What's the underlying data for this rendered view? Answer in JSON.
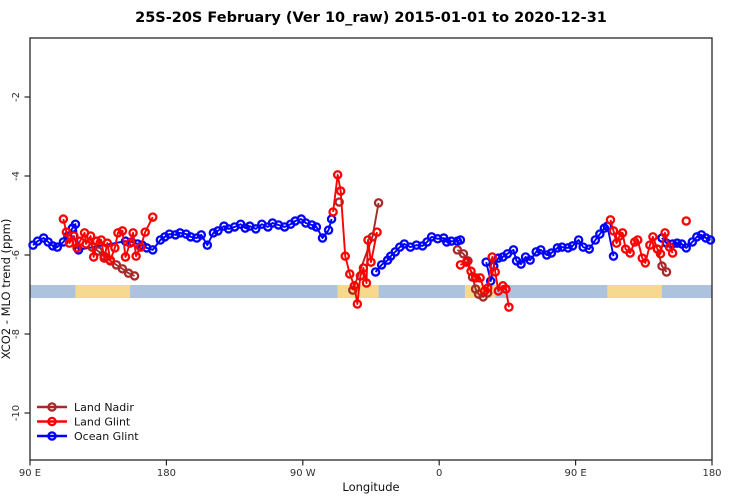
{
  "title": "25S-20S February (Ver 10_raw)   2015-01-01 to 2020-12-31",
  "chart_data": {
    "type": "line",
    "title": "25S-20S February (Ver 10_raw)   2015-01-01 to 2020-12-31",
    "xlabel": "Longitude",
    "ylabel": "XCO2 - MLO trend (ppm)",
    "x_axis": {
      "range_axis_deg": [
        90,
        540
      ],
      "ticks_axis_deg": [
        90,
        180,
        270,
        360,
        450,
        540
      ],
      "tick_labels": [
        "90 E",
        "180",
        "90 W",
        "0",
        "90 E",
        "180"
      ],
      "note": "longitude axis wraps eastward: 90E to 180 to 90W to 0 to 90E to 180"
    },
    "y_axis": {
      "range": [
        -11.2,
        -0.5
      ],
      "ticks": [
        -2,
        -4,
        -6,
        -8,
        -10
      ],
      "tick_labels": [
        "-2",
        "-4",
        "-6",
        "-8",
        "-10"
      ]
    },
    "grid": false,
    "legend": {
      "position": "bottom-left",
      "entries": [
        "Land Nadir",
        "Land Glint",
        "Ocean Glint"
      ]
    },
    "land_ocean_band": {
      "description": "horizontal strip marking land (yellow) vs ocean (blue) along longitude",
      "y_range_ppm": [
        -6.76,
        -7.09
      ],
      "ocean_color": "#adc2dd",
      "land_color": "#f6d98c",
      "segments": [
        {
          "surface": "ocean",
          "from": 90,
          "to": 120
        },
        {
          "surface": "land",
          "from": 120,
          "to": 156
        },
        {
          "surface": "ocean",
          "from": 156,
          "to": 293
        },
        {
          "surface": "land",
          "from": 293,
          "to": 320
        },
        {
          "surface": "ocean",
          "from": 320,
          "to": 377
        },
        {
          "surface": "land",
          "from": 377,
          "to": 397
        },
        {
          "surface": "ocean",
          "from": 397,
          "to": 471
        },
        {
          "surface": "land",
          "from": 471,
          "to": 507
        },
        {
          "surface": "ocean",
          "from": 507,
          "to": 540
        }
      ]
    },
    "series": [
      {
        "name": "Ocean Glint",
        "color": "#0000ff",
        "marker": "open-circle",
        "segments": [
          [
            [
              92,
              -5.75
            ],
            [
              95,
              -5.65
            ],
            [
              99,
              -5.57
            ],
            [
              102,
              -5.67
            ],
            [
              105,
              -5.77
            ],
            [
              108,
              -5.8
            ],
            [
              112,
              -5.67
            ],
            [
              115,
              -5.52
            ],
            [
              118,
              -5.32
            ],
            [
              120,
              -5.22
            ],
            [
              122,
              -5.87
            ],
            [
              153,
              -5.65
            ],
            [
              157,
              -5.67
            ],
            [
              161,
              -5.72
            ],
            [
              164,
              -5.75
            ],
            [
              167,
              -5.82
            ],
            [
              171,
              -5.87
            ],
            [
              176,
              -5.62
            ],
            [
              179,
              -5.54
            ],
            [
              182,
              -5.47
            ],
            [
              186,
              -5.49
            ],
            [
              189,
              -5.44
            ],
            [
              193,
              -5.47
            ],
            [
              196,
              -5.54
            ],
            [
              200,
              -5.57
            ],
            [
              203,
              -5.49
            ],
            [
              207,
              -5.75
            ],
            [
              211,
              -5.44
            ],
            [
              214,
              -5.39
            ],
            [
              218,
              -5.27
            ],
            [
              221,
              -5.34
            ],
            [
              225,
              -5.29
            ],
            [
              229,
              -5.22
            ],
            [
              232,
              -5.32
            ],
            [
              235,
              -5.27
            ],
            [
              239,
              -5.34
            ],
            [
              243,
              -5.22
            ],
            [
              247,
              -5.29
            ],
            [
              250,
              -5.19
            ],
            [
              254,
              -5.24
            ],
            [
              258,
              -5.29
            ],
            [
              262,
              -5.22
            ],
            [
              265,
              -5.14
            ],
            [
              269,
              -5.09
            ],
            [
              272,
              -5.19
            ],
            [
              276,
              -5.24
            ],
            [
              279,
              -5.29
            ],
            [
              283,
              -5.57
            ],
            [
              287,
              -5.37
            ],
            [
              289,
              -5.09
            ]
          ],
          [
            [
              318,
              -6.43
            ],
            [
              322,
              -6.25
            ],
            [
              326,
              -6.13
            ],
            [
              328,
              -6.03
            ],
            [
              331,
              -5.92
            ],
            [
              334,
              -5.8
            ],
            [
              337,
              -5.72
            ],
            [
              341,
              -5.8
            ],
            [
              345,
              -5.75
            ],
            [
              349,
              -5.77
            ],
            [
              352,
              -5.67
            ],
            [
              355,
              -5.54
            ],
            [
              359,
              -5.59
            ],
            [
              363,
              -5.57
            ],
            [
              365,
              -5.67
            ],
            [
              368,
              -5.65
            ],
            [
              372,
              -5.65
            ],
            [
              374,
              -5.62
            ]
          ],
          [
            [
              391,
              -6.18
            ],
            [
              394,
              -6.66
            ],
            [
              396,
              -6.28
            ],
            [
              399,
              -6.08
            ],
            [
              402,
              -6.05
            ],
            [
              405,
              -5.97
            ],
            [
              409,
              -5.87
            ],
            [
              411,
              -6.15
            ],
            [
              414,
              -6.23
            ],
            [
              417,
              -6.05
            ],
            [
              420,
              -6.13
            ],
            [
              424,
              -5.92
            ],
            [
              427,
              -5.87
            ],
            [
              431,
              -6.0
            ],
            [
              434,
              -5.95
            ],
            [
              438,
              -5.82
            ],
            [
              441,
              -5.8
            ],
            [
              445,
              -5.82
            ],
            [
              448,
              -5.77
            ],
            [
              452,
              -5.62
            ],
            [
              455,
              -5.8
            ],
            [
              459,
              -5.85
            ],
            [
              463,
              -5.62
            ],
            [
              466,
              -5.47
            ],
            [
              469,
              -5.32
            ],
            [
              471,
              -5.27
            ],
            [
              475,
              -6.03
            ]
          ],
          [
            [
              507,
              -5.57
            ],
            [
              510,
              -5.7
            ],
            [
              514,
              -5.72
            ],
            [
              517,
              -5.7
            ],
            [
              520,
              -5.72
            ],
            [
              523,
              -5.82
            ],
            [
              527,
              -5.67
            ],
            [
              530,
              -5.54
            ],
            [
              533,
              -5.49
            ],
            [
              536,
              -5.57
            ],
            [
              539,
              -5.62
            ]
          ]
        ]
      },
      {
        "name": "Land Nadir",
        "color": "#a52a2a",
        "marker": "open-circle",
        "segments": [
          [
            [
              131,
              -5.8
            ],
            [
              135,
              -5.9
            ],
            [
              139,
              -6.03
            ],
            [
              143,
              -6.15
            ],
            [
              147,
              -6.25
            ],
            [
              151,
              -6.35
            ],
            [
              155,
              -6.46
            ],
            [
              159,
              -6.53
            ]
          ],
          [
            [
              294,
              -4.66
            ]
          ],
          [
            [
              303,
              -6.89
            ],
            [
              316,
              -5.54
            ],
            [
              320,
              -4.68
            ]
          ],
          [
            [
              372,
              -5.87
            ],
            [
              376,
              -5.97
            ],
            [
              379,
              -6.15
            ],
            [
              382,
              -6.56
            ],
            [
              384,
              -6.86
            ],
            [
              386,
              -6.99
            ],
            [
              389,
              -7.06
            ],
            [
              392,
              -6.96
            ]
          ],
          [
            [
              504,
              -5.85
            ],
            [
              507,
              -6.28
            ],
            [
              510,
              -6.43
            ]
          ]
        ]
      },
      {
        "name": "Land Glint",
        "color": "#ff0000",
        "marker": "open-circle",
        "segments": [
          [
            [
              112,
              -5.09
            ],
            [
              114,
              -5.42
            ],
            [
              116,
              -5.7
            ],
            [
              119,
              -5.52
            ],
            [
              121,
              -5.82
            ],
            [
              123,
              -5.65
            ],
            [
              126,
              -5.44
            ],
            [
              127,
              -5.72
            ],
            [
              130,
              -5.52
            ],
            [
              132,
              -6.05
            ],
            [
              134,
              -5.65
            ],
            [
              137,
              -5.62
            ],
            [
              139,
              -6.08
            ],
            [
              141,
              -5.7
            ],
            [
              143,
              -6.13
            ],
            [
              146,
              -5.82
            ],
            [
              148,
              -5.44
            ],
            [
              151,
              -5.39
            ],
            [
              153,
              -6.05
            ],
            [
              156,
              -5.7
            ],
            [
              158,
              -5.44
            ],
            [
              160,
              -6.03
            ],
            [
              163,
              -5.8
            ],
            [
              166,
              -5.42
            ],
            [
              171,
              -5.04
            ]
          ],
          [
            [
              290,
              -4.91
            ],
            [
              293,
              -3.97
            ],
            [
              295,
              -4.38
            ],
            [
              298,
              -6.03
            ],
            [
              301,
              -6.48
            ],
            [
              304,
              -6.78
            ],
            [
              306,
              -7.24
            ],
            [
              308,
              -6.53
            ],
            [
              310,
              -6.33
            ],
            [
              312,
              -6.71
            ],
            [
              313,
              -5.62
            ],
            [
              315,
              -6.18
            ],
            [
              319,
              -5.42
            ]
          ],
          [
            [
              374,
              -6.25
            ],
            [
              378,
              -6.18
            ],
            [
              381,
              -6.41
            ],
            [
              384,
              -6.58
            ],
            [
              387,
              -6.58
            ],
            [
              390,
              -6.91
            ],
            [
              392,
              -6.84
            ],
            [
              395,
              -6.05
            ],
            [
              397,
              -6.43
            ],
            [
              399,
              -6.91
            ],
            [
              402,
              -6.78
            ],
            [
              404,
              -6.86
            ],
            [
              406,
              -7.32
            ]
          ],
          [
            [
              473,
              -5.11
            ],
            [
              475,
              -5.39
            ],
            [
              477,
              -5.7
            ],
            [
              479,
              -5.52
            ],
            [
              481,
              -5.44
            ],
            [
              483,
              -5.85
            ],
            [
              486,
              -5.95
            ],
            [
              489,
              -5.67
            ],
            [
              491,
              -5.62
            ],
            [
              494,
              -6.08
            ],
            [
              496,
              -6.2
            ],
            [
              499,
              -5.75
            ],
            [
              501,
              -5.54
            ],
            [
              504,
              -5.85
            ],
            [
              506,
              -5.97
            ],
            [
              509,
              -5.44
            ],
            [
              512,
              -5.8
            ],
            [
              514,
              -5.95
            ]
          ],
          [
            [
              523,
              -5.14
            ]
          ]
        ]
      }
    ]
  }
}
